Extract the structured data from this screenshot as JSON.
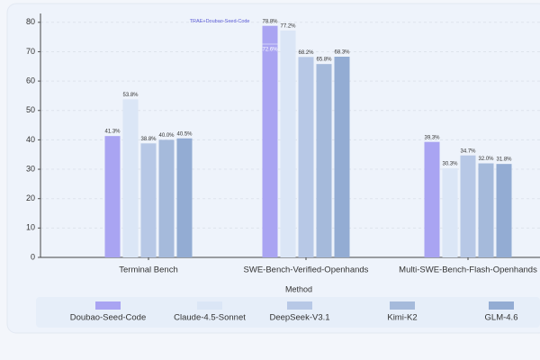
{
  "chart_data": {
    "type": "bar",
    "categories": [
      "Terminal Bench",
      "SWE-Bench-Verified-Openhands",
      "Multi-SWE-Bench-Flash-Openhands"
    ],
    "series": [
      {
        "name": "Doubao-Seed-Code",
        "color": "#a9a4f2",
        "values": [
          41.3,
          78.8,
          39.3
        ],
        "value_labels": [
          "41.3%",
          "78.8%",
          "39.3%"
        ]
      },
      {
        "name": "Claude-4.5-Sonnet",
        "color": "#dbe6f6",
        "values": [
          53.8,
          77.2,
          30.3
        ],
        "value_labels": [
          "53.8%",
          "77.2%",
          "30.3%"
        ]
      },
      {
        "name": "DeepSeek-V3.1",
        "color": "#b7c8e6",
        "values": [
          38.8,
          68.2,
          34.7
        ],
        "value_labels": [
          "38.8%",
          "68.2%",
          "34.7%"
        ]
      },
      {
        "name": "Kimi-K2",
        "color": "#a5badb",
        "values": [
          40.0,
          65.8,
          32.0
        ],
        "value_labels": [
          "40.0%",
          "65.8%",
          "32.0%"
        ]
      },
      {
        "name": "GLM-4.6",
        "color": "#93acd3",
        "values": [
          40.5,
          68.3,
          31.8
        ],
        "value_labels": [
          "40.5%",
          "68.3%",
          "31.8%"
        ]
      }
    ],
    "x_label": "Method",
    "ylim": [
      0,
      83
    ],
    "yticks": [
      0,
      10,
      20,
      30,
      40,
      50,
      60,
      70,
      80
    ],
    "grid": true,
    "legend": "bottom",
    "annotations": [
      {
        "text": "TRAE+Doubao-Seed-Code"
      },
      {
        "value": 72.6,
        "label": "72.6%"
      }
    ]
  }
}
